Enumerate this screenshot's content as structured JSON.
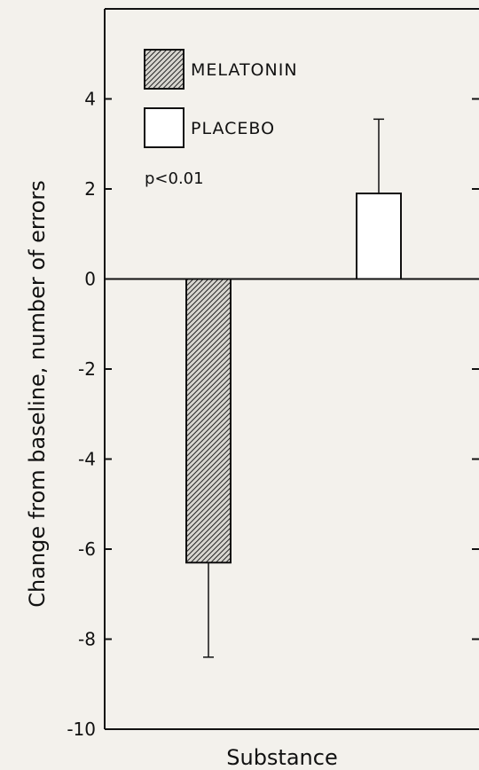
{
  "chart_data": {
    "type": "bar",
    "categories": [
      "MELATONIN",
      "PLACEBO"
    ],
    "series": [
      {
        "name": "MELATONIN",
        "values": [
          -6.3,
          null
        ],
        "error": [
          2.1,
          null
        ],
        "pattern": "hatched",
        "color": "#111111"
      },
      {
        "name": "PLACEBO",
        "values": [
          null,
          1.9
        ],
        "error": [
          null,
          1.65
        ],
        "pattern": "open",
        "color": "#ffffff"
      }
    ],
    "xlabel": "Substance",
    "ylabel": "Change from baseline, number of errors",
    "ylim": [
      -10,
      6
    ],
    "yticks": [
      -10,
      -8,
      -6,
      -4,
      -2,
      0,
      2,
      4
    ],
    "ytick_labels": [
      "-10",
      "-8",
      "-6",
      "-4",
      "-2",
      "0",
      "2",
      "4"
    ],
    "annotation": "p<0.01",
    "legend": [
      {
        "label": "MELATONIN",
        "pattern": "hatched"
      },
      {
        "label": "PLACEBO",
        "pattern": "open"
      }
    ],
    "legend_position": "top-left",
    "grid": false
  }
}
